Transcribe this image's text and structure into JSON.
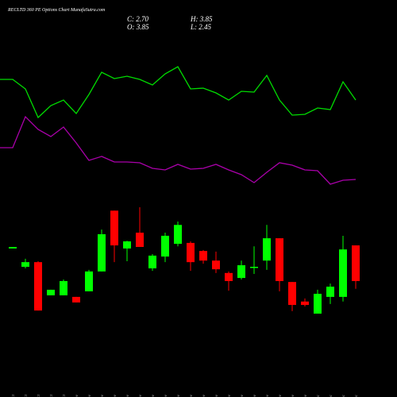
{
  "chart_data": {
    "type": "candlestick",
    "title": "RECLTD 360 PE Options Chart MunafaSutra.com",
    "ohlc_labels": {
      "close": "C: 2.70",
      "high": "H: 3.85",
      "open": "O: 3.85",
      "low": "L: 2.45"
    },
    "categories": [
      "27 Oct",
      "28 Oct",
      "29 Oct",
      "30 Oct",
      "31 Oct",
      "03 Nov",
      "04 Nov",
      "06 Nov",
      "07 Nov",
      "10 Nov",
      "11 Nov",
      "12 Nov",
      "13 Nov",
      "14 Nov",
      "17 Nov",
      "18 Nov",
      "19 Nov",
      "20 Nov",
      "21 Nov",
      "24 Nov",
      "25 Nov",
      "26 Nov",
      "27 Nov",
      "28 Nov",
      "01 Dec",
      "02 Dec",
      "03 Dec",
      "04 Dec"
    ],
    "open": [
      3.75,
      3.16,
      3.31,
      2.24,
      2.24,
      2.19,
      2.37,
      3.01,
      4.97,
      3.75,
      4.26,
      3.11,
      3.49,
      3.9,
      3.93,
      3.67,
      3.36,
      2.96,
      2.8,
      3.13,
      3.36,
      4.08,
      2.67,
      2.04,
      1.65,
      2.19,
      2.19,
      3.85
    ],
    "high": [
      3.8,
      3.42,
      3.34,
      2.42,
      2.75,
      2.19,
      3.06,
      4.36,
      4.97,
      4.0,
      5.08,
      3.57,
      4.26,
      4.62,
      3.98,
      3.7,
      3.65,
      3.01,
      3.36,
      3.82,
      4.51,
      4.08,
      2.67,
      2.14,
      2.42,
      2.62,
      4.16,
      3.85
    ],
    "low": [
      3.75,
      3.11,
      1.75,
      2.24,
      2.24,
      2.01,
      2.37,
      3.01,
      3.31,
      3.34,
      3.8,
      3.03,
      3.31,
      3.82,
      3.03,
      3.26,
      2.96,
      2.39,
      2.75,
      2.93,
      3.06,
      2.37,
      1.73,
      1.88,
      1.65,
      1.96,
      2.04,
      2.45
    ],
    "close": [
      3.8,
      3.31,
      1.75,
      2.42,
      2.7,
      2.01,
      3.01,
      4.21,
      3.85,
      3.98,
      3.8,
      3.52,
      4.16,
      4.51,
      3.31,
      3.36,
      3.08,
      2.7,
      3.21,
      3.16,
      4.08,
      2.7,
      1.93,
      1.93,
      2.29,
      2.52,
      3.72,
      2.7
    ],
    "up_color": "#00ff00",
    "down_color": "#ff0000",
    "lines": [
      {
        "color": "#00dd00",
        "values": [
          100,
          88,
          52,
          67,
          74,
          57,
          81,
          109,
          101,
          104,
          100,
          93,
          107,
          116,
          88,
          89,
          83,
          74,
          85,
          84,
          105,
          74,
          55,
          56,
          64,
          62,
          97,
          74
        ]
      },
      {
        "color": "#aa00aa",
        "values": [
          114,
          153,
          137,
          128,
          140,
          120,
          98,
          103,
          96,
          96,
          95,
          88,
          86,
          93,
          87,
          88,
          93,
          86,
          80,
          70,
          83,
          95,
          92,
          86,
          85,
          68,
          73,
          74
        ]
      }
    ]
  }
}
